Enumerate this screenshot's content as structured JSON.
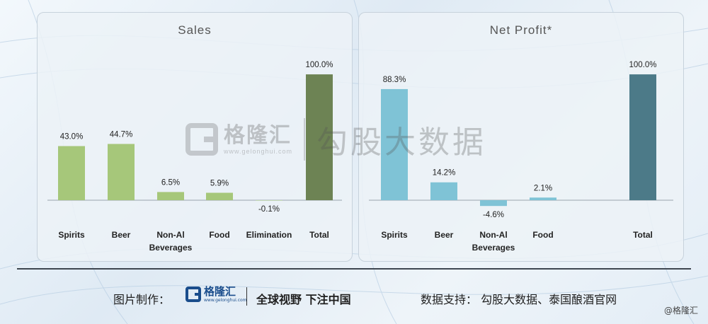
{
  "chart_data": [
    {
      "type": "bar",
      "title": "Sales",
      "categories": [
        "Spirits",
        "Beer",
        "Non-Al\nBeverages",
        "Food",
        "Elimination",
        "Total"
      ],
      "values": [
        43.0,
        44.7,
        6.5,
        5.9,
        -0.1,
        100.0
      ],
      "labels": [
        "43.0%",
        "44.7%",
        "6.5%",
        "5.9%",
        "-0.1%",
        "100.0%"
      ],
      "colors": [
        "#a6c77a",
        "#a6c77a",
        "#a6c77a",
        "#a6c77a",
        "#a6c77a",
        "#6d8354"
      ],
      "ylim": [
        -6,
        104
      ],
      "grid": false,
      "legend": "none"
    },
    {
      "type": "bar",
      "title": "Net Profit*",
      "categories": [
        "Spirits",
        "Beer",
        "Non-Al\nBeverages",
        "Food",
        "Total"
      ],
      "values": [
        88.3,
        14.2,
        -4.6,
        2.1,
        100.0
      ],
      "labels": [
        "88.3%",
        "14.2%",
        "-4.6%",
        "2.1%",
        "100.0%"
      ],
      "colors": [
        "#7fc3d6",
        "#7fc3d6",
        "#7fc3d6",
        "#7fc3d6",
        "#4c7a88"
      ],
      "ylim": [
        -6,
        104
      ],
      "grid": false,
      "legend": "none"
    }
  ],
  "watermark": {
    "brand_cn": "格隆汇",
    "brand_url": "www.gelonghui.com",
    "text": "勾股大数据"
  },
  "footer": {
    "made_by": "图片制作：",
    "logo_cn": "格隆汇",
    "logo_url": "www.gelonghui.com",
    "slogan": "全球视野 下注中国",
    "source": "数据支持：  勾股大数据、泰国酿酒官网",
    "corner_mark": "@格隆汇"
  },
  "colors": {
    "sales_bar": "#a6c77a",
    "sales_total": "#6d8354",
    "profit_bar": "#7fc3d6",
    "profit_total": "#4c7a88"
  }
}
